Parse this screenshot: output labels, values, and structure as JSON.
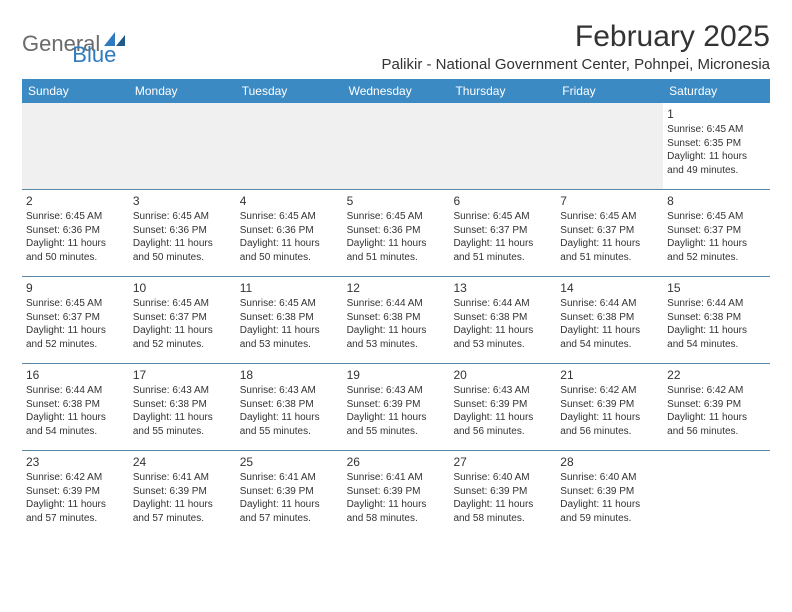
{
  "logo": {
    "general": "General",
    "blue": "Blue"
  },
  "title": "February 2025",
  "location": "Palikir - National Government Center, Pohnpei, Micronesia",
  "colors": {
    "header_bg": "#3b8ac4",
    "header_text": "#ffffff",
    "row_border": "#5a87a8",
    "blank_bg": "#f0f0f0",
    "text": "#333333",
    "logo_gray": "#6b6b6b",
    "logo_blue": "#2f7bbf"
  },
  "dayNames": [
    "Sunday",
    "Monday",
    "Tuesday",
    "Wednesday",
    "Thursday",
    "Friday",
    "Saturday"
  ],
  "weeks": [
    [
      {
        "blank": true
      },
      {
        "blank": true
      },
      {
        "blank": true
      },
      {
        "blank": true
      },
      {
        "blank": true
      },
      {
        "blank": true
      },
      {
        "num": "1",
        "sunrise": "Sunrise: 6:45 AM",
        "sunset": "Sunset: 6:35 PM",
        "dl1": "Daylight: 11 hours",
        "dl2": "and 49 minutes."
      }
    ],
    [
      {
        "num": "2",
        "sunrise": "Sunrise: 6:45 AM",
        "sunset": "Sunset: 6:36 PM",
        "dl1": "Daylight: 11 hours",
        "dl2": "and 50 minutes."
      },
      {
        "num": "3",
        "sunrise": "Sunrise: 6:45 AM",
        "sunset": "Sunset: 6:36 PM",
        "dl1": "Daylight: 11 hours",
        "dl2": "and 50 minutes."
      },
      {
        "num": "4",
        "sunrise": "Sunrise: 6:45 AM",
        "sunset": "Sunset: 6:36 PM",
        "dl1": "Daylight: 11 hours",
        "dl2": "and 50 minutes."
      },
      {
        "num": "5",
        "sunrise": "Sunrise: 6:45 AM",
        "sunset": "Sunset: 6:36 PM",
        "dl1": "Daylight: 11 hours",
        "dl2": "and 51 minutes."
      },
      {
        "num": "6",
        "sunrise": "Sunrise: 6:45 AM",
        "sunset": "Sunset: 6:37 PM",
        "dl1": "Daylight: 11 hours",
        "dl2": "and 51 minutes."
      },
      {
        "num": "7",
        "sunrise": "Sunrise: 6:45 AM",
        "sunset": "Sunset: 6:37 PM",
        "dl1": "Daylight: 11 hours",
        "dl2": "and 51 minutes."
      },
      {
        "num": "8",
        "sunrise": "Sunrise: 6:45 AM",
        "sunset": "Sunset: 6:37 PM",
        "dl1": "Daylight: 11 hours",
        "dl2": "and 52 minutes."
      }
    ],
    [
      {
        "num": "9",
        "sunrise": "Sunrise: 6:45 AM",
        "sunset": "Sunset: 6:37 PM",
        "dl1": "Daylight: 11 hours",
        "dl2": "and 52 minutes."
      },
      {
        "num": "10",
        "sunrise": "Sunrise: 6:45 AM",
        "sunset": "Sunset: 6:37 PM",
        "dl1": "Daylight: 11 hours",
        "dl2": "and 52 minutes."
      },
      {
        "num": "11",
        "sunrise": "Sunrise: 6:45 AM",
        "sunset": "Sunset: 6:38 PM",
        "dl1": "Daylight: 11 hours",
        "dl2": "and 53 minutes."
      },
      {
        "num": "12",
        "sunrise": "Sunrise: 6:44 AM",
        "sunset": "Sunset: 6:38 PM",
        "dl1": "Daylight: 11 hours",
        "dl2": "and 53 minutes."
      },
      {
        "num": "13",
        "sunrise": "Sunrise: 6:44 AM",
        "sunset": "Sunset: 6:38 PM",
        "dl1": "Daylight: 11 hours",
        "dl2": "and 53 minutes."
      },
      {
        "num": "14",
        "sunrise": "Sunrise: 6:44 AM",
        "sunset": "Sunset: 6:38 PM",
        "dl1": "Daylight: 11 hours",
        "dl2": "and 54 minutes."
      },
      {
        "num": "15",
        "sunrise": "Sunrise: 6:44 AM",
        "sunset": "Sunset: 6:38 PM",
        "dl1": "Daylight: 11 hours",
        "dl2": "and 54 minutes."
      }
    ],
    [
      {
        "num": "16",
        "sunrise": "Sunrise: 6:44 AM",
        "sunset": "Sunset: 6:38 PM",
        "dl1": "Daylight: 11 hours",
        "dl2": "and 54 minutes."
      },
      {
        "num": "17",
        "sunrise": "Sunrise: 6:43 AM",
        "sunset": "Sunset: 6:38 PM",
        "dl1": "Daylight: 11 hours",
        "dl2": "and 55 minutes."
      },
      {
        "num": "18",
        "sunrise": "Sunrise: 6:43 AM",
        "sunset": "Sunset: 6:38 PM",
        "dl1": "Daylight: 11 hours",
        "dl2": "and 55 minutes."
      },
      {
        "num": "19",
        "sunrise": "Sunrise: 6:43 AM",
        "sunset": "Sunset: 6:39 PM",
        "dl1": "Daylight: 11 hours",
        "dl2": "and 55 minutes."
      },
      {
        "num": "20",
        "sunrise": "Sunrise: 6:43 AM",
        "sunset": "Sunset: 6:39 PM",
        "dl1": "Daylight: 11 hours",
        "dl2": "and 56 minutes."
      },
      {
        "num": "21",
        "sunrise": "Sunrise: 6:42 AM",
        "sunset": "Sunset: 6:39 PM",
        "dl1": "Daylight: 11 hours",
        "dl2": "and 56 minutes."
      },
      {
        "num": "22",
        "sunrise": "Sunrise: 6:42 AM",
        "sunset": "Sunset: 6:39 PM",
        "dl1": "Daylight: 11 hours",
        "dl2": "and 56 minutes."
      }
    ],
    [
      {
        "num": "23",
        "sunrise": "Sunrise: 6:42 AM",
        "sunset": "Sunset: 6:39 PM",
        "dl1": "Daylight: 11 hours",
        "dl2": "and 57 minutes."
      },
      {
        "num": "24",
        "sunrise": "Sunrise: 6:41 AM",
        "sunset": "Sunset: 6:39 PM",
        "dl1": "Daylight: 11 hours",
        "dl2": "and 57 minutes."
      },
      {
        "num": "25",
        "sunrise": "Sunrise: 6:41 AM",
        "sunset": "Sunset: 6:39 PM",
        "dl1": "Daylight: 11 hours",
        "dl2": "and 57 minutes."
      },
      {
        "num": "26",
        "sunrise": "Sunrise: 6:41 AM",
        "sunset": "Sunset: 6:39 PM",
        "dl1": "Daylight: 11 hours",
        "dl2": "and 58 minutes."
      },
      {
        "num": "27",
        "sunrise": "Sunrise: 6:40 AM",
        "sunset": "Sunset: 6:39 PM",
        "dl1": "Daylight: 11 hours",
        "dl2": "and 58 minutes."
      },
      {
        "num": "28",
        "sunrise": "Sunrise: 6:40 AM",
        "sunset": "Sunset: 6:39 PM",
        "dl1": "Daylight: 11 hours",
        "dl2": "and 59 minutes."
      },
      {
        "blank": true,
        "white": true
      }
    ]
  ]
}
